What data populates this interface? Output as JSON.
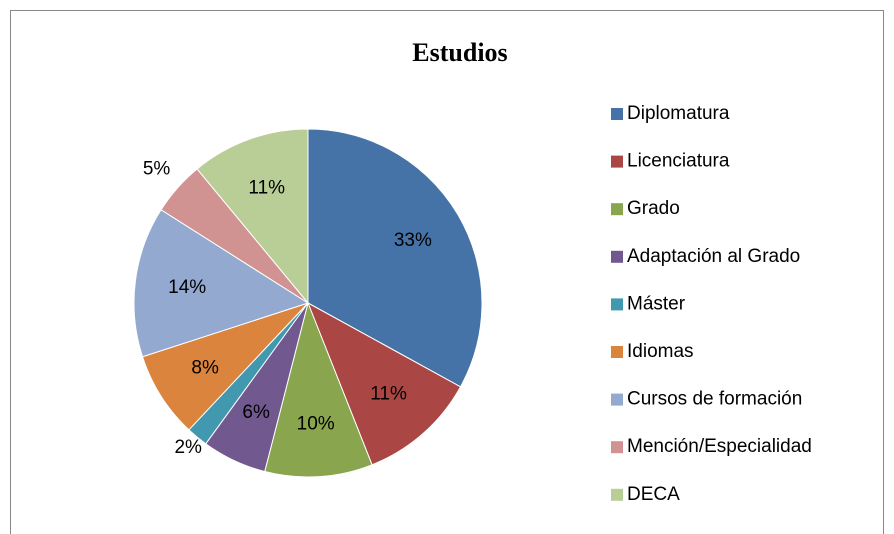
{
  "chart_data": {
    "type": "pie",
    "title": "Estudios",
    "categories": [
      "Diplomatura",
      "Licenciatura",
      "Grado",
      "Adaptación al Grado",
      "Máster",
      "Idiomas",
      "Cursos de formación",
      "Mención/Especialidad",
      "DECA"
    ],
    "values": [
      33,
      11,
      10,
      6,
      2,
      8,
      14,
      5,
      11
    ],
    "value_labels": [
      "33%",
      "11%",
      "10%",
      "6%",
      "2%",
      "8%",
      "14%",
      "5%",
      "11%"
    ],
    "colors": [
      "#4572a7",
      "#aa4643",
      "#89a54e",
      "#71588f",
      "#4198af",
      "#db843d",
      "#93a9cf",
      "#d19392",
      "#b9cd96"
    ],
    "legend": "right"
  }
}
